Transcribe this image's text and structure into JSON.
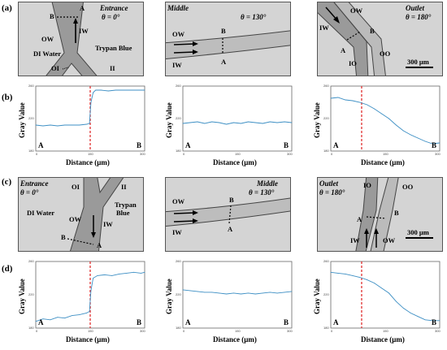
{
  "row_labels": [
    "(a)",
    "(b)",
    "(c)",
    "(d)"
  ],
  "micrographs_top": [
    {
      "title1": "Entrance",
      "title2": "θ = 0°",
      "labels": [
        "B",
        "A",
        "IW",
        "OW",
        "DI Water",
        "OI",
        "Trypan Blue",
        "II"
      ]
    },
    {
      "title1": "Middle",
      "title2": "θ = 130°",
      "labels": [
        "OW",
        "B",
        "IW",
        "A"
      ]
    },
    {
      "title1": "Outlet",
      "title2": "θ = 180°",
      "labels": [
        "OW",
        "IW",
        "B",
        "A",
        "IO",
        "OO"
      ],
      "scale": "300 μm"
    }
  ],
  "micrographs_bottom": [
    {
      "title1": "Entrance",
      "title2": "θ = 0°",
      "labels": [
        "OI",
        "II",
        "Trypan",
        "Blue",
        "DI Water",
        "OW",
        "IW",
        "B",
        "A"
      ]
    },
    {
      "title1": "Middle",
      "title2": "θ = 130°",
      "labels": [
        "OW",
        "B",
        "IW",
        "A"
      ]
    },
    {
      "title1": "Outlet",
      "title2": "θ = 180°",
      "labels": [
        "IO",
        "OO",
        "B",
        "A",
        "IW",
        "OW"
      ],
      "scale": "300 μm"
    }
  ],
  "plot_text": {
    "ylabel": "Gray Value",
    "xlabel": "Distance (μm)",
    "left_corner": "A",
    "right_corner": "B",
    "yticks": [
      "260",
      "220",
      "180"
    ],
    "xticks": [
      "0",
      "150",
      "300"
    ]
  },
  "chart_data": [
    {
      "type": "line",
      "panel": "(b) Entrance",
      "xlim": [
        0,
        300
      ],
      "ylim": [
        180,
        260
      ],
      "marker_x": 150,
      "x": [
        0,
        20,
        40,
        60,
        80,
        100,
        120,
        140,
        148,
        152,
        158,
        165,
        180,
        200,
        220,
        240,
        260,
        280,
        300
      ],
      "y": [
        212,
        211,
        212,
        211,
        212,
        212,
        212,
        213,
        214,
        240,
        252,
        255,
        255,
        254,
        255,
        255,
        255,
        255,
        255
      ]
    },
    {
      "type": "line",
      "panel": "(b) Middle",
      "xlim": [
        0,
        300
      ],
      "ylim": [
        180,
        260
      ],
      "x": [
        0,
        20,
        40,
        60,
        80,
        100,
        120,
        140,
        160,
        180,
        200,
        220,
        240,
        260,
        280,
        300
      ],
      "y": [
        214,
        215,
        216,
        214,
        216,
        215,
        213,
        215,
        214,
        216,
        215,
        214,
        216,
        215,
        216,
        215
      ]
    },
    {
      "type": "line",
      "panel": "(b) Outlet",
      "xlim": [
        0,
        300
      ],
      "ylim": [
        180,
        260
      ],
      "marker_x": 85,
      "x": [
        0,
        20,
        40,
        60,
        80,
        100,
        120,
        140,
        160,
        180,
        200,
        220,
        240,
        260,
        280,
        300
      ],
      "y": [
        245,
        246,
        243,
        242,
        240,
        237,
        232,
        226,
        220,
        212,
        205,
        200,
        196,
        192,
        189,
        190
      ]
    },
    {
      "type": "line",
      "panel": "(d) Entrance",
      "xlim": [
        0,
        300
      ],
      "ylim": [
        180,
        260
      ],
      "marker_x": 150,
      "x": [
        0,
        20,
        40,
        60,
        80,
        100,
        120,
        140,
        148,
        152,
        158,
        170,
        190,
        210,
        230,
        250,
        270,
        290,
        300
      ],
      "y": [
        188,
        191,
        190,
        193,
        192,
        195,
        196,
        198,
        200,
        225,
        240,
        243,
        244,
        243,
        245,
        246,
        247,
        246,
        247
      ]
    },
    {
      "type": "line",
      "panel": "(d) Middle",
      "xlim": [
        0,
        300
      ],
      "ylim": [
        180,
        260
      ],
      "x": [
        0,
        20,
        40,
        60,
        80,
        100,
        120,
        140,
        160,
        180,
        200,
        220,
        240,
        260,
        280,
        300
      ],
      "y": [
        226,
        225,
        224,
        223,
        223,
        222,
        221,
        222,
        221,
        222,
        221,
        222,
        223,
        222,
        223,
        224
      ]
    },
    {
      "type": "line",
      "panel": "(d) Outlet",
      "xlim": [
        0,
        300
      ],
      "ylim": [
        180,
        260
      ],
      "marker_x": 85,
      "x": [
        0,
        20,
        40,
        60,
        80,
        100,
        120,
        140,
        160,
        180,
        200,
        220,
        240,
        260,
        280,
        300
      ],
      "y": [
        247,
        246,
        245,
        243,
        241,
        238,
        234,
        228,
        222,
        212,
        204,
        198,
        194,
        190,
        189,
        189
      ]
    }
  ]
}
